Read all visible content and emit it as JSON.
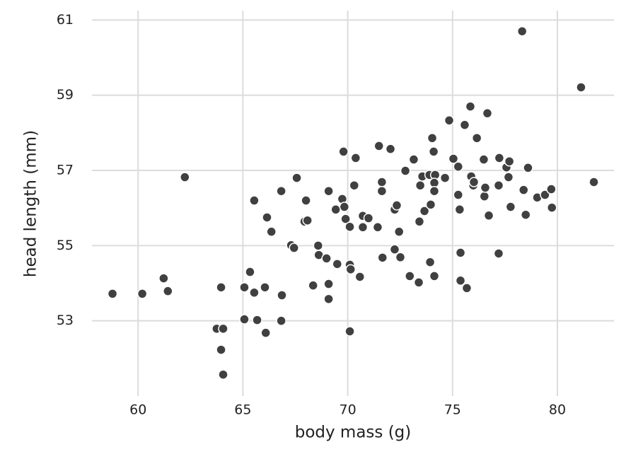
{
  "chart_data": {
    "type": "scatter",
    "x_label": "body mass (g)",
    "y_label": "head length (mm)",
    "color": "#404040",
    "grid": true,
    "xlim": [
      57.8,
      82.7
    ],
    "ylim": [
      51,
      61.25
    ],
    "xticks": [
      60,
      65,
      70,
      75,
      80
    ],
    "yticks": [
      53,
      55,
      57,
      59,
      61
    ],
    "x": [
      58.78,
      60.2,
      61.22,
      61.42,
      62.23,
      63.75,
      63.96,
      64.06,
      63.96,
      64.06,
      65.07,
      65.07,
      65.34,
      65.54,
      65.54,
      65.68,
      66.05,
      66.09,
      66.15,
      66.36,
      66.83,
      66.86,
      66.83,
      67.3,
      67.44,
      67.57,
      67.94,
      68.08,
      68.01,
      68.35,
      68.59,
      68.62,
      68.99,
      69.09,
      69.09,
      69.09,
      69.43,
      69.5,
      69.74,
      69.8,
      69.84,
      69.9,
      70.1,
      70.1,
      70.14,
      70.1,
      70.31,
      70.38,
      70.58,
      70.72,
      70.72,
      70.99,
      71.43,
      71.49,
      71.63,
      71.63,
      71.66,
      72.04,
      72.24,
      72.34,
      72.24,
      72.45,
      72.51,
      72.75,
      72.96,
      73.15,
      73.39,
      73.46,
      73.42,
      73.56,
      73.66,
      73.9,
      73.96,
      73.93,
      74.03,
      74.1,
      74.17,
      74.13,
      74.13,
      74.13,
      74.64,
      74.84,
      75.04,
      75.27,
      75.27,
      75.34,
      75.38,
      75.38,
      75.58,
      75.68,
      75.85,
      75.89,
      75.99,
      76.02,
      76.16,
      76.49,
      76.52,
      76.56,
      76.66,
      76.73,
      77.2,
      77.2,
      77.23,
      77.57,
      77.71,
      77.67,
      77.77,
      78.32,
      78.39,
      78.49,
      78.6,
      79.04,
      79.41,
      79.71,
      79.74,
      81.13,
      81.74
    ],
    "values": [
      53.72,
      53.72,
      54.13,
      53.79,
      56.82,
      52.79,
      53.89,
      52.79,
      52.23,
      51.57,
      53.89,
      53.04,
      54.3,
      56.2,
      53.75,
      53.02,
      53.89,
      52.68,
      55.75,
      55.37,
      56.45,
      53.68,
      53.0,
      55.01,
      54.94,
      56.8,
      55.64,
      55.67,
      56.2,
      53.94,
      55.0,
      54.75,
      54.66,
      56.45,
      53.98,
      53.58,
      55.96,
      54.51,
      56.24,
      57.5,
      56.03,
      55.71,
      55.5,
      54.49,
      54.37,
      52.72,
      56.6,
      57.33,
      54.17,
      55.79,
      55.49,
      55.73,
      55.49,
      57.65,
      56.69,
      56.45,
      54.68,
      57.57,
      55.96,
      56.07,
      54.9,
      55.37,
      54.69,
      56.99,
      54.19,
      57.29,
      54.02,
      56.6,
      55.64,
      56.84,
      55.92,
      56.88,
      56.09,
      54.56,
      57.86,
      57.5,
      56.88,
      56.67,
      56.45,
      54.19,
      56.8,
      58.33,
      57.31,
      57.1,
      56.35,
      55.96,
      54.81,
      54.07,
      58.21,
      53.87,
      58.7,
      56.84,
      56.6,
      56.69,
      57.86,
      57.29,
      56.31,
      56.54,
      58.52,
      55.8,
      56.6,
      54.79,
      57.33,
      57.08,
      57.24,
      56.82,
      56.03,
      60.7,
      56.48,
      55.82,
      57.07,
      56.28,
      56.35,
      56.5,
      56.01,
      59.21,
      56.69
    ]
  }
}
